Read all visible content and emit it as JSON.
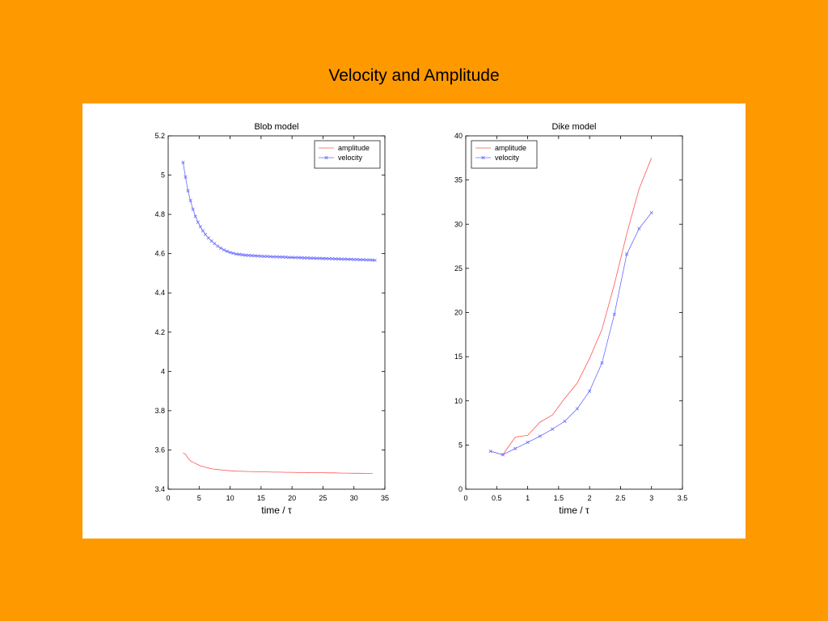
{
  "slide": {
    "title": "Velocity and Amplitude"
  },
  "chart_data": [
    {
      "type": "line",
      "title": "Blob model",
      "xlabel": "time / τ",
      "ylabel": "",
      "xlim": [
        0,
        35
      ],
      "ylim": [
        3.4,
        5.2
      ],
      "xticks": [
        "0",
        "5",
        "10",
        "15",
        "20",
        "25",
        "30",
        "35"
      ],
      "yticks": [
        "3.4",
        "3.6",
        "3.8",
        "4",
        "4.2",
        "4.4",
        "4.6",
        "4.8",
        "5",
        "5.2"
      ],
      "legend": "top-right",
      "grid": false,
      "series": [
        {
          "name": "amplitude",
          "color": "#FF5555",
          "marker": "none",
          "x": [
            2.4,
            2.8,
            3.2,
            3.6,
            4,
            4.6,
            5.2,
            5.8,
            6.5,
            7.2,
            8,
            9,
            10,
            11,
            12,
            13,
            14,
            15,
            16,
            17,
            18,
            19,
            20,
            21,
            22,
            23,
            24,
            25,
            26,
            27,
            28,
            29,
            30,
            31,
            32,
            33
          ],
          "y": [
            3.585,
            3.578,
            3.558,
            3.545,
            3.537,
            3.528,
            3.519,
            3.514,
            3.508,
            3.503,
            3.5,
            3.497,
            3.494,
            3.492,
            3.491,
            3.49,
            3.489,
            3.488,
            3.488,
            3.487,
            3.487,
            3.486,
            3.486,
            3.485,
            3.485,
            3.484,
            3.484,
            3.484,
            3.483,
            3.483,
            3.482,
            3.482,
            3.481,
            3.481,
            3.48,
            3.48
          ]
        },
        {
          "name": "velocity",
          "color": "#6A6AFF",
          "marker": "x",
          "x": [
            2.4,
            2.8,
            3.2,
            3.6,
            4,
            4.4,
            4.8,
            5.2,
            5.6,
            6,
            6.5,
            7,
            7.5,
            8,
            8.5,
            9,
            9.5,
            10,
            10.5,
            11,
            11.5,
            12,
            12.5,
            13,
            13.5,
            14,
            14.5,
            15,
            15.5,
            16,
            16.5,
            17,
            17.5,
            18,
            18.5,
            19,
            19.5,
            20,
            20.5,
            21,
            21.5,
            22,
            22.5,
            23,
            23.5,
            24,
            24.5,
            25,
            25.5,
            26,
            26.5,
            27,
            27.5,
            28,
            28.5,
            29,
            29.5,
            30,
            30.5,
            31,
            31.5,
            32,
            32.5,
            33,
            33.4
          ],
          "y": [
            5.065,
            4.99,
            4.92,
            4.87,
            4.826,
            4.79,
            4.76,
            4.737,
            4.716,
            4.698,
            4.68,
            4.664,
            4.651,
            4.638,
            4.628,
            4.619,
            4.612,
            4.606,
            4.602,
            4.598,
            4.596,
            4.594,
            4.592,
            4.591,
            4.59,
            4.589,
            4.588,
            4.587,
            4.586,
            4.586,
            4.585,
            4.584,
            4.584,
            4.583,
            4.583,
            4.582,
            4.581,
            4.581,
            4.58,
            4.58,
            4.579,
            4.578,
            4.578,
            4.577,
            4.577,
            4.576,
            4.576,
            4.575,
            4.575,
            4.574,
            4.574,
            4.573,
            4.573,
            4.572,
            4.572,
            4.571,
            4.571,
            4.57,
            4.57,
            4.569,
            4.569,
            4.568,
            4.568,
            4.567,
            4.566
          ]
        }
      ]
    },
    {
      "type": "line",
      "title": "Dike model",
      "xlabel": "time / τ",
      "ylabel": "",
      "xlim": [
        0,
        3.5
      ],
      "ylim": [
        0,
        40
      ],
      "xticks": [
        "0",
        "0.5",
        "1",
        "1.5",
        "2",
        "2.5",
        "3",
        "3.5"
      ],
      "yticks": [
        "0",
        "5",
        "10",
        "15",
        "20",
        "25",
        "30",
        "35",
        "40"
      ],
      "legend": "top-left",
      "grid": false,
      "series": [
        {
          "name": "amplitude",
          "color": "#FF5555",
          "marker": "none",
          "x": [
            0.4,
            0.6,
            0.8,
            1.0,
            1.2,
            1.4,
            1.6,
            1.8,
            2.0,
            2.2,
            2.4,
            2.6,
            2.8,
            3.0
          ],
          "y": [
            4.3,
            3.9,
            5.9,
            6.1,
            7.6,
            8.4,
            10.3,
            12.0,
            14.8,
            18.1,
            23.2,
            28.9,
            34.0,
            37.5
          ]
        },
        {
          "name": "velocity",
          "color": "#6A6AFF",
          "marker": "x",
          "x": [
            0.4,
            0.6,
            0.8,
            1.0,
            1.2,
            1.4,
            1.6,
            1.8,
            2.0,
            2.2,
            2.4,
            2.6,
            2.8,
            3.0
          ],
          "y": [
            4.3,
            3.9,
            4.6,
            5.3,
            6.0,
            6.8,
            7.7,
            9.1,
            11.1,
            14.3,
            19.8,
            26.6,
            29.5,
            31.3
          ]
        }
      ]
    }
  ]
}
